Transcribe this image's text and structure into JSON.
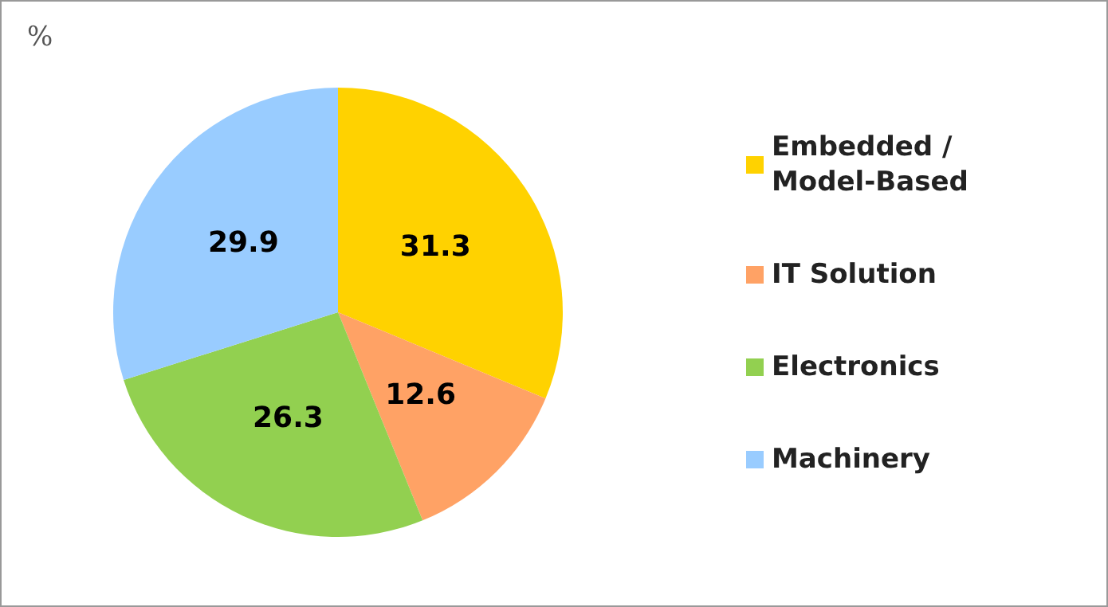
{
  "chart_data": {
    "type": "pie",
    "categories": [
      "Embedded / Model-Based",
      "IT Solution",
      "Electronics",
      "Machinery"
    ],
    "values": [
      31.3,
      12.6,
      26.3,
      29.9
    ],
    "colors": [
      "#ffd200",
      "#ffa265",
      "#92d050",
      "#99ccff"
    ],
    "data_labels": true,
    "legend": "right",
    "annotations": [
      "%"
    ]
  }
}
